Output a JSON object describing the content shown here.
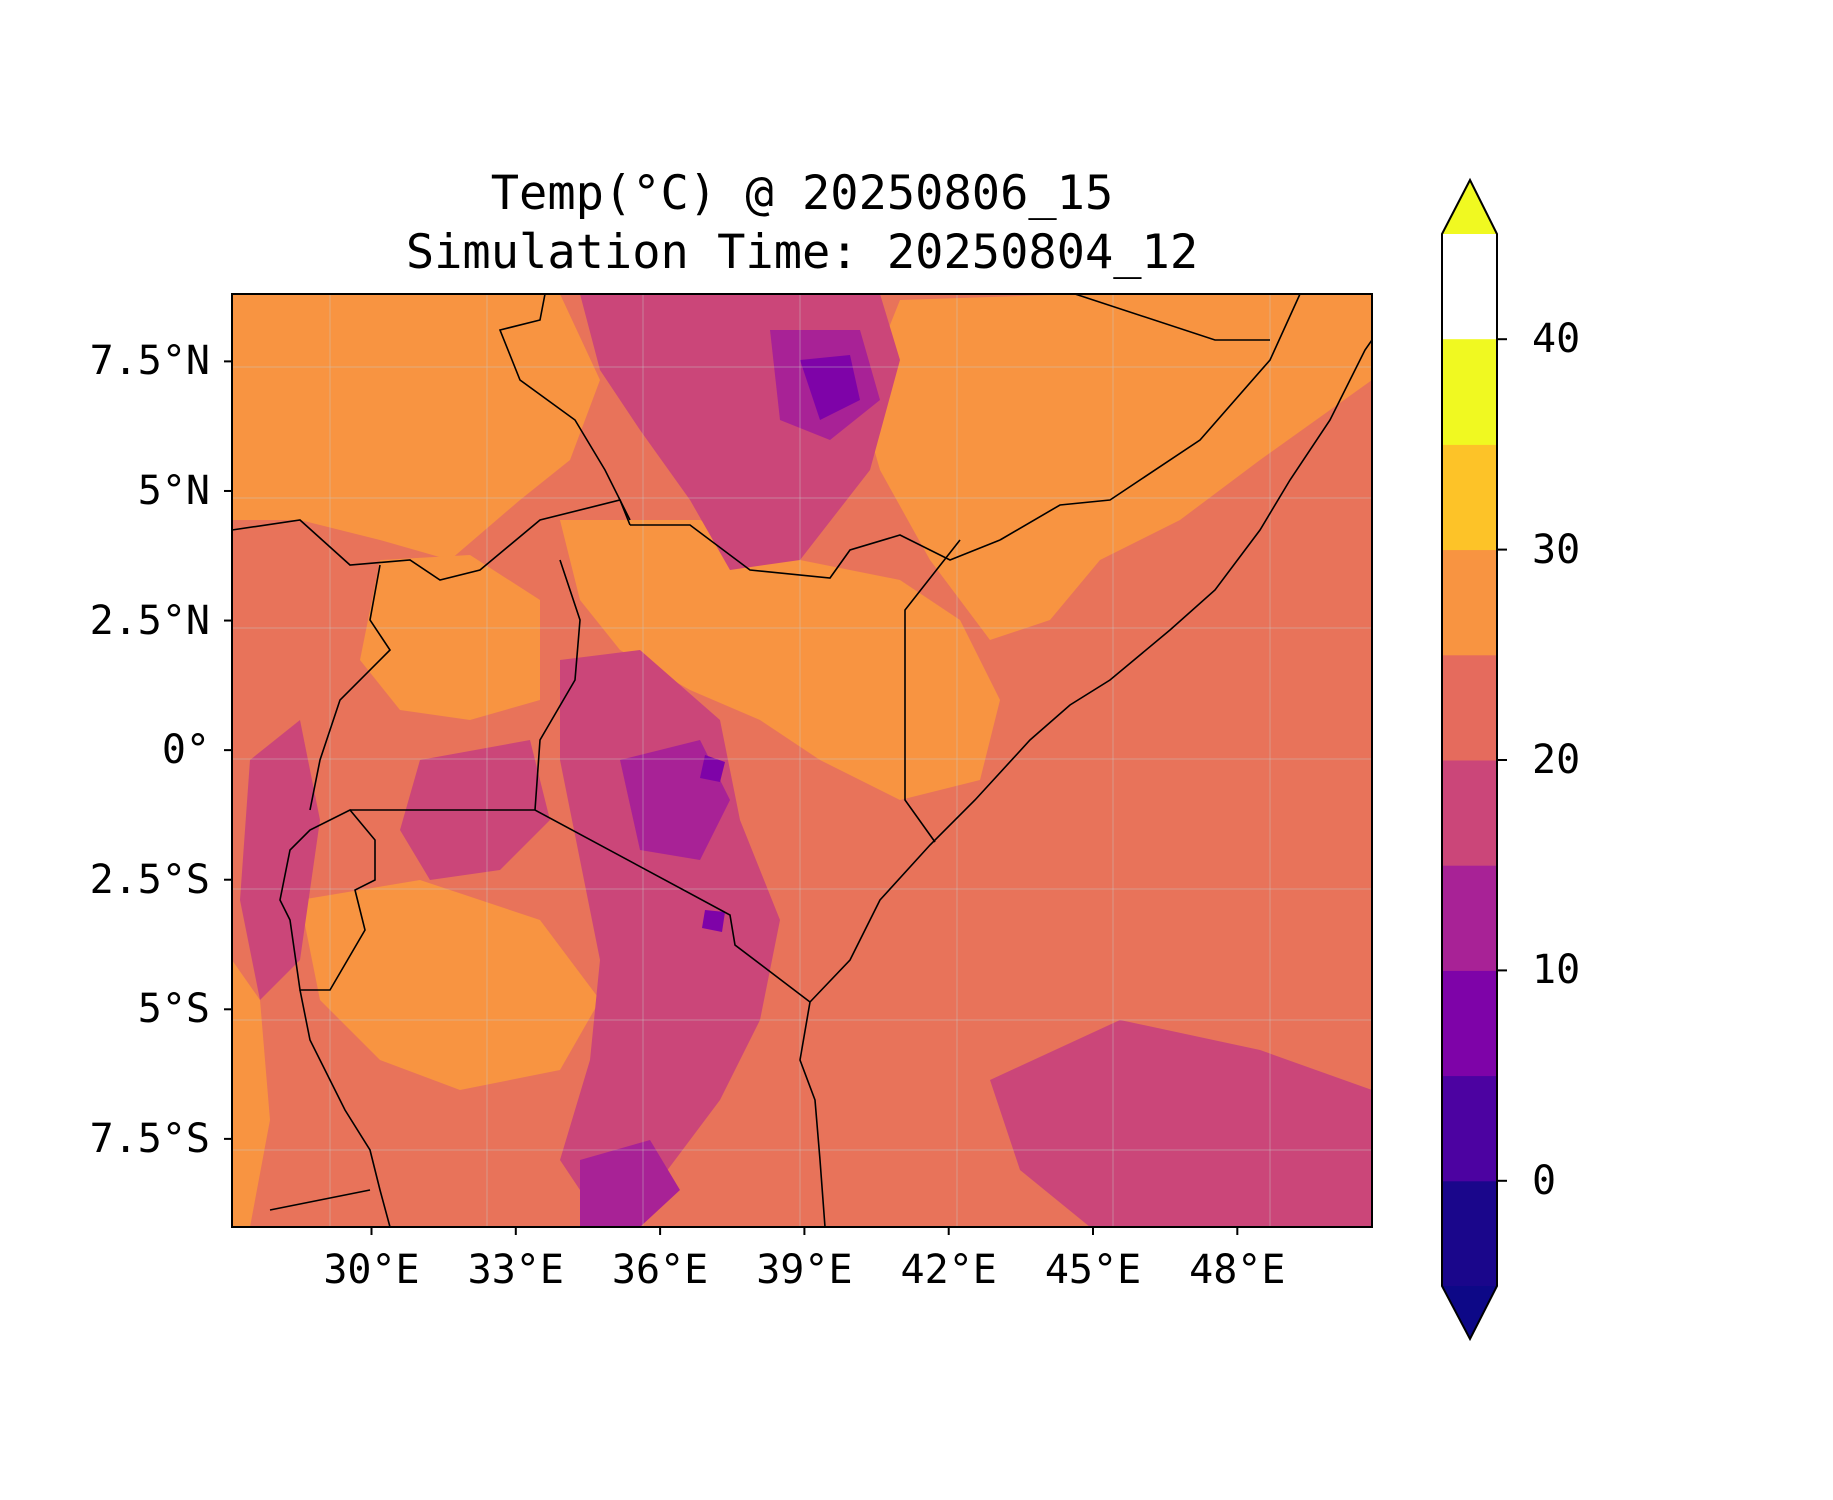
{
  "title": {
    "line1": "Temp(°C) @ 20250806_15",
    "line2": "Simulation Time: 20250804_12"
  },
  "map": {
    "extent": {
      "lon_min": 27.1,
      "lon_max": 50.8,
      "lat_min": -9.2,
      "lat_max": 8.8
    },
    "lat_ticks": [
      {
        "value": 7.5,
        "label": "7.5°N"
      },
      {
        "value": 5,
        "label": "5°N"
      },
      {
        "value": 2.5,
        "label": "2.5°N"
      },
      {
        "value": 0,
        "label": "0°"
      },
      {
        "value": -2.5,
        "label": "2.5°S"
      },
      {
        "value": -5,
        "label": "5°S"
      },
      {
        "value": -7.5,
        "label": "7.5°S"
      }
    ],
    "lon_ticks": [
      {
        "value": 30,
        "label": "30°E"
      },
      {
        "value": 33,
        "label": "33°E"
      },
      {
        "value": 36,
        "label": "36°E"
      },
      {
        "value": 39,
        "label": "39°E"
      },
      {
        "value": 42,
        "label": "42°E"
      },
      {
        "value": 45,
        "label": "45°E"
      },
      {
        "value": 48,
        "label": "48°E"
      }
    ],
    "gridlines": true,
    "background_level_color": "#e8735a"
  },
  "colorbar": {
    "colormap": "plasma",
    "range": [
      -5,
      45
    ],
    "step": 5,
    "extend": "both",
    "level_colors": [
      "#1a068b",
      "#4c02a1",
      "#7e03a8",
      "#a82296",
      "#cb4679",
      "#e56b5d",
      "#f89441",
      "#fdc328",
      "#f0f921"
    ],
    "under_color": "#0d0887",
    "over_color": "#f0f921",
    "ticks": [
      {
        "value": 0,
        "label": "0"
      },
      {
        "value": 10,
        "label": "10"
      },
      {
        "value": 20,
        "label": "20"
      },
      {
        "value": 30,
        "label": "30"
      },
      {
        "value": 40,
        "label": "40"
      }
    ]
  }
}
